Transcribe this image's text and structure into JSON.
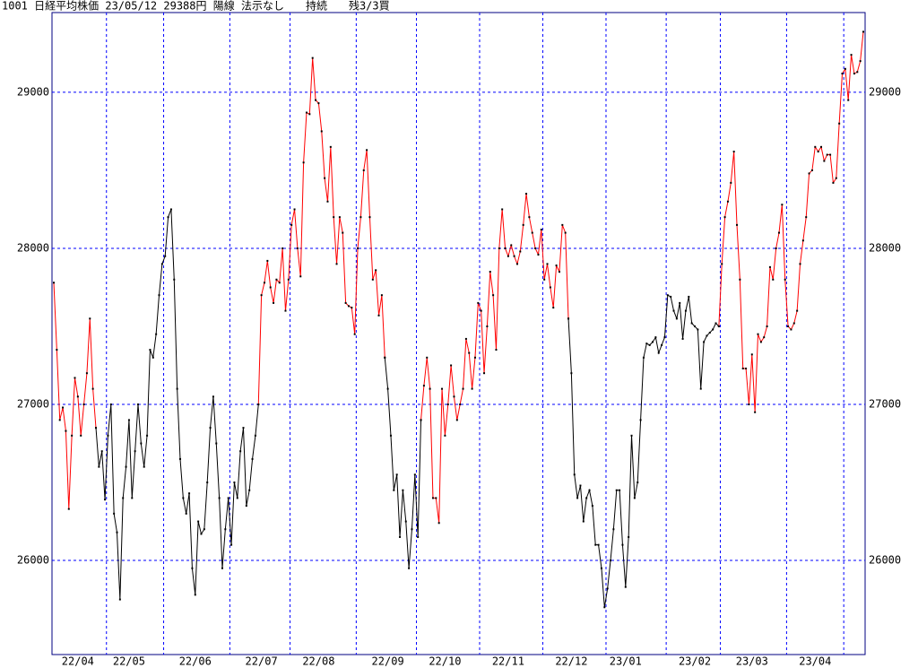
{
  "chart_data": {
    "type": "line",
    "title": "1001 日経平均株価 23/05/12 29388円 陽線 法示なし　　持続　　残3/3買",
    "categories": [
      null,
      null,
      null,
      null,
      null,
      null,
      null,
      null,
      "22/04",
      null,
      null,
      null,
      null,
      null,
      null,
      null,
      null,
      null,
      null,
      null,
      null,
      null,
      null,
      null,
      null,
      "22/05",
      null,
      null,
      null,
      null,
      null,
      null,
      null,
      null,
      null,
      null,
      null,
      null,
      null,
      null,
      null,
      null,
      null,
      null,
      null,
      null,
      null,
      "22/06",
      null,
      null,
      null,
      null,
      null,
      null,
      null,
      null,
      null,
      null,
      null,
      null,
      null,
      null,
      null,
      null,
      null,
      null,
      null,
      null,
      null,
      "22/07",
      null,
      null,
      null,
      null,
      null,
      null,
      null,
      null,
      null,
      null,
      null,
      null,
      null,
      null,
      null,
      null,
      null,
      null,
      "22/08",
      null,
      null,
      null,
      null,
      null,
      null,
      null,
      null,
      null,
      null,
      null,
      null,
      null,
      null,
      null,
      null,
      null,
      null,
      null,
      null,
      null,
      null,
      "22/09",
      null,
      null,
      null,
      null,
      null,
      null,
      null,
      null,
      null,
      null,
      null,
      null,
      null,
      null,
      null,
      null,
      null,
      null,
      "22/10",
      null,
      null,
      null,
      null,
      null,
      null,
      null,
      null,
      null,
      null,
      null,
      null,
      null,
      null,
      null,
      null,
      null,
      null,
      null,
      null,
      "22/11",
      null,
      null,
      null,
      null,
      null,
      null,
      null,
      null,
      null,
      null,
      null,
      null,
      null,
      null,
      null,
      null,
      null,
      null,
      null,
      null,
      "22/12",
      null,
      null,
      null,
      null,
      null,
      null,
      null,
      null,
      null,
      null,
      null,
      null,
      null,
      null,
      null,
      null,
      null,
      "23/01",
      null,
      null,
      null,
      null,
      null,
      null,
      null,
      null,
      null,
      null,
      null,
      null,
      null,
      null,
      null,
      null,
      null,
      null,
      null,
      null,
      null,
      null,
      "23/02",
      null,
      null,
      null,
      null,
      null,
      null,
      null,
      null,
      null,
      null,
      null,
      null,
      null,
      null,
      null,
      null,
      null,
      null,
      "23/03",
      null,
      null,
      null,
      null,
      null,
      null,
      null,
      null,
      null,
      null,
      null,
      null,
      null,
      null,
      null,
      null,
      null,
      null,
      null,
      null,
      "23/04",
      null,
      null,
      null,
      null,
      null,
      null,
      null,
      null,
      null,
      null,
      null,
      null,
      null,
      null,
      null,
      null
    ],
    "xticks": [
      17.5,
      36.5,
      58.5,
      78.5,
      100.5,
      120.5,
      141.5,
      162.5,
      183.5,
      203.5,
      221.5,
      243.5,
      262.5
    ],
    "ylim": [
      25397,
      29511
    ],
    "yticks": [
      26000,
      27000,
      28000,
      29000
    ],
    "grid": true,
    "marker_color": "#000000",
    "series": [
      {
        "color": "#ff0000",
        "values": [
          27780,
          27350,
          26900,
          26980,
          26830,
          26330,
          26800,
          27170,
          27050,
          26800,
          27000,
          27200,
          27550,
          27100,
          26850,
          null,
          null,
          null,
          null,
          null,
          null,
          null,
          null,
          null,
          null,
          null,
          null,
          null,
          null,
          null,
          null,
          null,
          null,
          null,
          null,
          null,
          null,
          null,
          null,
          null,
          null,
          null,
          null,
          null,
          null,
          null,
          null,
          null,
          null,
          null,
          null,
          null,
          null,
          null,
          null,
          null,
          null,
          null,
          null,
          null,
          null,
          null,
          null,
          null,
          null,
          null,
          null,
          null,
          27000,
          27700,
          27780,
          27920,
          27750,
          27650,
          27800,
          27780,
          28000,
          27600,
          27800,
          28150,
          28250,
          28000,
          27820,
          28550,
          28870,
          28860,
          29220,
          28950,
          28930,
          28750,
          28450,
          28300,
          28650,
          28200,
          27900,
          28200,
          28100,
          27650,
          27630,
          27620,
          27450,
          28000,
          28200,
          28500,
          28630,
          28200,
          27800,
          27860,
          27570,
          27700,
          27300,
          null,
          null,
          null,
          null,
          null,
          null,
          null,
          null,
          null,
          null,
          null,
          26900,
          27120,
          27300,
          27100,
          26400,
          26400,
          26240,
          27100,
          26800,
          27000,
          27250,
          27050,
          26900,
          27000,
          27100,
          27420,
          27330,
          27100,
          27300,
          27650,
          27600,
          27200,
          27500,
          27850,
          27700,
          27350,
          28000,
          28250,
          28000,
          27950,
          28020,
          27950,
          27900,
          27980,
          28150,
          28350,
          28200,
          28100,
          28000,
          27960,
          28120,
          27800,
          27900,
          27750,
          27620,
          27890,
          27850,
          28150,
          28100,
          27550,
          null,
          null,
          null,
          null,
          null,
          null,
          null,
          null,
          null,
          null,
          null,
          null,
          null,
          null,
          null,
          null,
          null,
          null,
          null,
          null,
          null,
          null,
          null,
          null,
          null,
          null,
          null,
          null,
          null,
          null,
          null,
          null,
          null,
          null,
          null,
          null,
          null,
          null,
          null,
          null,
          null,
          null,
          null,
          null,
          null,
          null,
          null,
          null,
          null,
          27500,
          27900,
          28200,
          28300,
          28420,
          28620,
          28150,
          27800,
          27230,
          27230,
          27000,
          27320,
          26950,
          27450,
          27400,
          27430,
          27500,
          27880,
          27800,
          28000,
          28100,
          28280,
          27800,
          27500,
          27480,
          27520,
          27600,
          27900,
          28050,
          28200,
          28480,
          28500,
          28650,
          28620,
          28650,
          28560,
          28600,
          28600,
          28420,
          28450,
          28800,
          29120,
          29150,
          28950,
          29240,
          29120,
          29130,
          29200,
          29388
        ]
      },
      {
        "color": "#000000",
        "values": [
          null,
          null,
          null,
          null,
          null,
          null,
          null,
          null,
          null,
          null,
          null,
          null,
          null,
          null,
          26850,
          26600,
          26700,
          26390,
          26800,
          27000,
          26300,
          26180,
          25750,
          26400,
          26600,
          26900,
          26400,
          26700,
          27000,
          26750,
          26600,
          26800,
          27350,
          27300,
          27450,
          27700,
          27900,
          27950,
          28200,
          28250,
          27800,
          27100,
          26650,
          26400,
          26300,
          26430,
          25950,
          25780,
          26250,
          26170,
          26200,
          26500,
          26850,
          27050,
          26750,
          26400,
          25950,
          26200,
          26400,
          26100,
          26500,
          26400,
          26700,
          26850,
          26350,
          26450,
          26650,
          26800,
          27000,
          null,
          null,
          null,
          null,
          null,
          null,
          null,
          null,
          null,
          null,
          null,
          null,
          null,
          null,
          null,
          null,
          null,
          null,
          null,
          null,
          null,
          null,
          null,
          null,
          null,
          null,
          null,
          null,
          null,
          null,
          null,
          null,
          null,
          null,
          null,
          null,
          null,
          null,
          null,
          null,
          null,
          27300,
          27100,
          26800,
          26450,
          26550,
          26150,
          26450,
          26250,
          25950,
          26200,
          26550,
          26150,
          26900,
          null,
          null,
          null,
          null,
          null,
          null,
          null,
          null,
          null,
          null,
          null,
          null,
          null,
          null,
          null,
          null,
          null,
          null,
          null,
          null,
          null,
          null,
          null,
          null,
          null,
          null,
          null,
          null,
          null,
          null,
          null,
          null,
          null,
          null,
          null,
          null,
          null,
          null,
          null,
          null,
          null,
          null,
          null,
          null,
          null,
          null,
          null,
          null,
          27550,
          27200,
          26550,
          26400,
          26480,
          26250,
          26400,
          26450,
          26350,
          26100,
          26100,
          25950,
          25700,
          25820,
          26000,
          26200,
          26450,
          26450,
          26100,
          25830,
          26150,
          26800,
          26400,
          26500,
          26900,
          27300,
          27390,
          27380,
          27400,
          27430,
          27330,
          27380,
          27430,
          27700,
          27690,
          27600,
          27550,
          27650,
          27420,
          27600,
          27690,
          27520,
          27500,
          27480,
          27100,
          27400,
          27440,
          27460,
          27480,
          27520,
          27500,
          null,
          null,
          null,
          null,
          null,
          null,
          null,
          null,
          null,
          null,
          null,
          null,
          null,
          null,
          null,
          null,
          null,
          null,
          null,
          null,
          null,
          null,
          null,
          null,
          null,
          null,
          null,
          null,
          null,
          null,
          null,
          null,
          null,
          null,
          null,
          null,
          null,
          null,
          null,
          null,
          null,
          null,
          null,
          null,
          null,
          null,
          null,
          null
        ]
      }
    ]
  }
}
